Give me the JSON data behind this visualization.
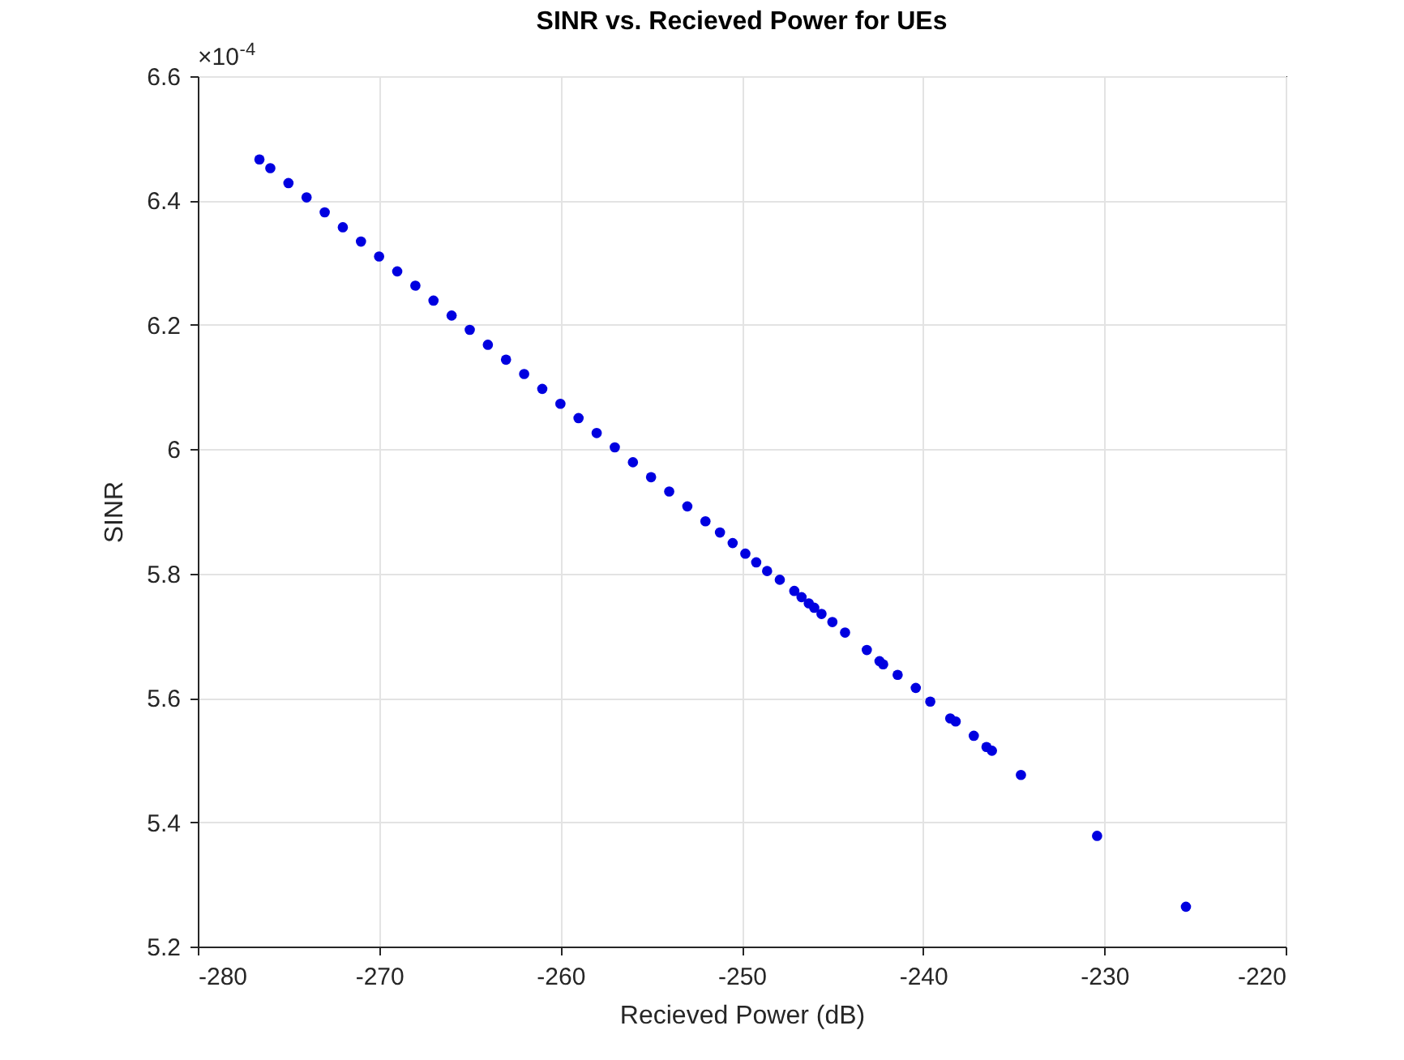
{
  "chart_data": {
    "type": "scatter",
    "title": "SINR vs. Recieved Power for UEs",
    "xlabel": "Recieved Power (dB)",
    "ylabel": "SINR",
    "annotations": [
      "×10$^{-4}$"
    ],
    "xlim": [
      -280,
      -220
    ],
    "xticks": [
      -280,
      -270,
      -260,
      -250,
      -240,
      -230,
      -220
    ],
    "ylim": [
      5.2,
      6.6
    ],
    "yticks": [
      5.2,
      5.4,
      5.6,
      5.8,
      {
        "value": 6,
        "label": "6"
      },
      6.2,
      6.4,
      6.6
    ],
    "grid": true,
    "marker": "circle",
    "series": [
      {
        "color": "#0000e0",
        "x": [
          -276.6,
          -276,
          -275,
          -274,
          -273,
          -272,
          -271,
          -270,
          -269,
          -268,
          -267,
          -266,
          -265,
          -264,
          -263,
          -262,
          -261,
          -260,
          -259,
          -258,
          -257,
          -256,
          -255,
          -254,
          -253,
          -252,
          -251.2,
          -250.5,
          -249.8,
          -249.2,
          -248.6,
          -247.9,
          -247.1,
          -246.7,
          -246.3,
          -246.0,
          -245.6,
          -245.0,
          -244.3,
          -243.1,
          -242.4,
          -242.2,
          -241.4,
          -240.4,
          -239.6,
          -238.5,
          -238.2,
          -237.2,
          -236.5,
          -236.2,
          -234.6,
          -230.4,
          -225.5
        ],
        "values": [
          6.466,
          6.452,
          6.428,
          6.405,
          6.381,
          6.357,
          6.334,
          6.31,
          6.286,
          6.263,
          6.239,
          6.215,
          6.192,
          6.168,
          6.144,
          6.121,
          6.097,
          6.073,
          6.05,
          6.026,
          6.003,
          5.979,
          5.955,
          5.932,
          5.908,
          5.884,
          5.866,
          5.849,
          5.832,
          5.818,
          5.804,
          5.79,
          5.772,
          5.762,
          5.752,
          5.745,
          5.735,
          5.722,
          5.705,
          5.677,
          5.659,
          5.654,
          5.637,
          5.616,
          5.594,
          5.567,
          5.562,
          5.539,
          5.521,
          5.515,
          5.476,
          5.378,
          5.264
        ]
      }
    ]
  }
}
